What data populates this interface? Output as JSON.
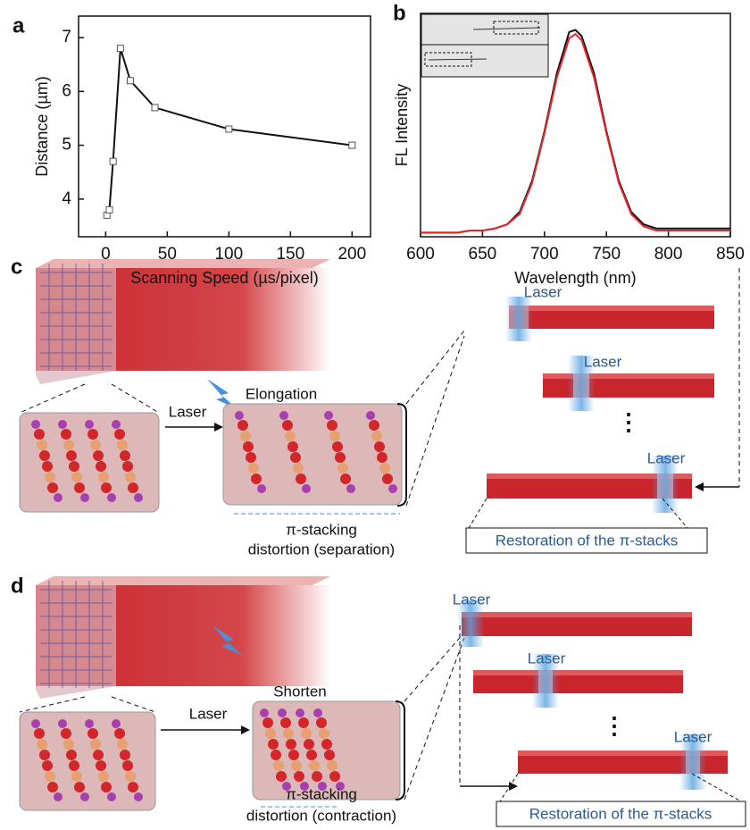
{
  "panel_labels": [
    "a",
    "b",
    "c",
    "d"
  ],
  "chart_data": [
    {
      "type": "line",
      "xlabel": "Scanning Speed (µs/pixel)",
      "ylabel": "Distance (µm)",
      "x": [
        1,
        3,
        6,
        12,
        20,
        40,
        100,
        200
      ],
      "values": [
        3.7,
        3.8,
        4.7,
        6.8,
        6.2,
        5.7,
        5.3,
        5.0
      ],
      "color": "#111111",
      "xlim": [
        -22,
        215
      ],
      "ylim": [
        3.3,
        7.4
      ],
      "xticks": [
        0,
        50,
        100,
        150,
        200
      ],
      "yticks": [
        4,
        5,
        6,
        7
      ]
    },
    {
      "type": "line",
      "xlabel": "Wavelength (nm)",
      "ylabel": "FL Intensity",
      "x": [
        600,
        610,
        620,
        630,
        640,
        650,
        660,
        670,
        680,
        690,
        700,
        710,
        720,
        725,
        730,
        740,
        750,
        760,
        770,
        780,
        790,
        800,
        810,
        820,
        830,
        840,
        850
      ],
      "series": [
        {
          "color": "#111111",
          "values": [
            0.02,
            0.02,
            0.02,
            0.02,
            0.03,
            0.03,
            0.04,
            0.06,
            0.12,
            0.27,
            0.51,
            0.79,
            0.99,
            1.0,
            0.97,
            0.79,
            0.51,
            0.27,
            0.12,
            0.06,
            0.04,
            0.04,
            0.04,
            0.04,
            0.04,
            0.04,
            0.04
          ]
        },
        {
          "color": "#e8252b",
          "values": [
            0.02,
            0.02,
            0.02,
            0.02,
            0.03,
            0.03,
            0.04,
            0.06,
            0.11,
            0.26,
            0.5,
            0.77,
            0.96,
            0.98,
            0.95,
            0.77,
            0.5,
            0.26,
            0.11,
            0.05,
            0.03,
            0.03,
            0.03,
            0.03,
            0.03,
            0.03,
            0.03
          ]
        }
      ],
      "xlim": [
        600,
        850
      ],
      "ylim": [
        0,
        1.08
      ],
      "xticks": [
        600,
        650,
        700,
        750,
        800,
        850
      ]
    }
  ],
  "diagrams": [
    {
      "laser": "Laser",
      "action": "Elongation",
      "caption": [
        "π-stacking",
        "distortion (separation)"
      ],
      "beam_labels": [
        "Laser",
        "Laser",
        "Laser"
      ],
      "dots": "⋮",
      "restoration": "Restoration of the π-stacks"
    },
    {
      "laser": "Laser",
      "action": "Shorten",
      "caption": [
        "π-stacking",
        "distortion (contraction)"
      ],
      "beam_labels": [
        "Laser",
        "Laser",
        "Laser"
      ],
      "dots": "⋮",
      "restoration": "Restoration of the π-stacks"
    }
  ]
}
